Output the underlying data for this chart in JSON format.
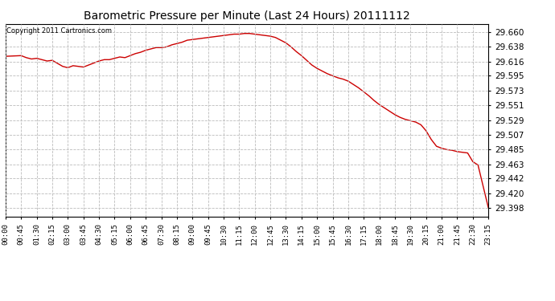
{
  "title": "Barometric Pressure per Minute (Last 24 Hours) 20111112",
  "copyright": "Copyright 2011 Cartronics.com",
  "line_color": "#cc0000",
  "background_color": "#ffffff",
  "grid_color": "#bbbbbb",
  "yticks": [
    29.398,
    29.42,
    29.442,
    29.463,
    29.485,
    29.507,
    29.529,
    29.551,
    29.573,
    29.595,
    29.616,
    29.638,
    29.66
  ],
  "ylim": [
    29.385,
    29.672
  ],
  "xtick_labels": [
    "00:00",
    "00:45",
    "01:30",
    "02:15",
    "03:00",
    "03:45",
    "04:30",
    "05:15",
    "06:00",
    "06:45",
    "07:30",
    "08:15",
    "09:00",
    "09:45",
    "10:30",
    "11:15",
    "12:00",
    "12:45",
    "13:30",
    "14:15",
    "15:00",
    "15:45",
    "16:30",
    "17:15",
    "18:00",
    "18:45",
    "19:30",
    "20:15",
    "21:00",
    "21:45",
    "22:30",
    "23:15"
  ],
  "curve_x": [
    0,
    45,
    60,
    75,
    90,
    105,
    120,
    135,
    165,
    180,
    195,
    210,
    225,
    240,
    255,
    270,
    285,
    300,
    315,
    330,
    345,
    360,
    375,
    390,
    405,
    420,
    435,
    450,
    465,
    480,
    495,
    510,
    525,
    540,
    555,
    570,
    585,
    600,
    615,
    630,
    645,
    660,
    675,
    690,
    705,
    720,
    735,
    750,
    765,
    780,
    795,
    810,
    825,
    840,
    855,
    870,
    885,
    900,
    915,
    930,
    945,
    960,
    975,
    990,
    1005,
    1020,
    1035,
    1050,
    1065,
    1080,
    1095,
    1110,
    1125,
    1140,
    1155,
    1170,
    1185,
    1200,
    1215,
    1230,
    1245,
    1260,
    1275,
    1290,
    1305,
    1320,
    1335,
    1350,
    1365,
    1380,
    1395
  ],
  "curve_y": [
    29.624,
    29.625,
    29.622,
    29.62,
    29.621,
    29.619,
    29.617,
    29.618,
    29.609,
    29.607,
    29.61,
    29.609,
    29.608,
    29.611,
    29.614,
    29.617,
    29.619,
    29.619,
    29.621,
    29.623,
    29.622,
    29.625,
    29.628,
    29.63,
    29.633,
    29.635,
    29.637,
    29.637,
    29.638,
    29.641,
    29.643,
    29.645,
    29.648,
    29.649,
    29.65,
    29.651,
    29.652,
    29.653,
    29.654,
    29.655,
    29.656,
    29.657,
    29.657,
    29.658,
    29.658,
    29.657,
    29.656,
    29.655,
    29.654,
    29.652,
    29.648,
    29.644,
    29.638,
    29.631,
    29.625,
    29.618,
    29.611,
    29.606,
    29.602,
    29.598,
    29.595,
    29.592,
    29.59,
    29.587,
    29.582,
    29.577,
    29.571,
    29.565,
    29.558,
    29.552,
    29.547,
    29.542,
    29.537,
    29.533,
    29.53,
    29.528,
    29.526,
    29.522,
    29.513,
    29.5,
    29.49,
    29.487,
    29.485,
    29.484,
    29.482,
    29.481,
    29.48,
    29.467,
    29.462,
    29.43,
    29.398
  ]
}
